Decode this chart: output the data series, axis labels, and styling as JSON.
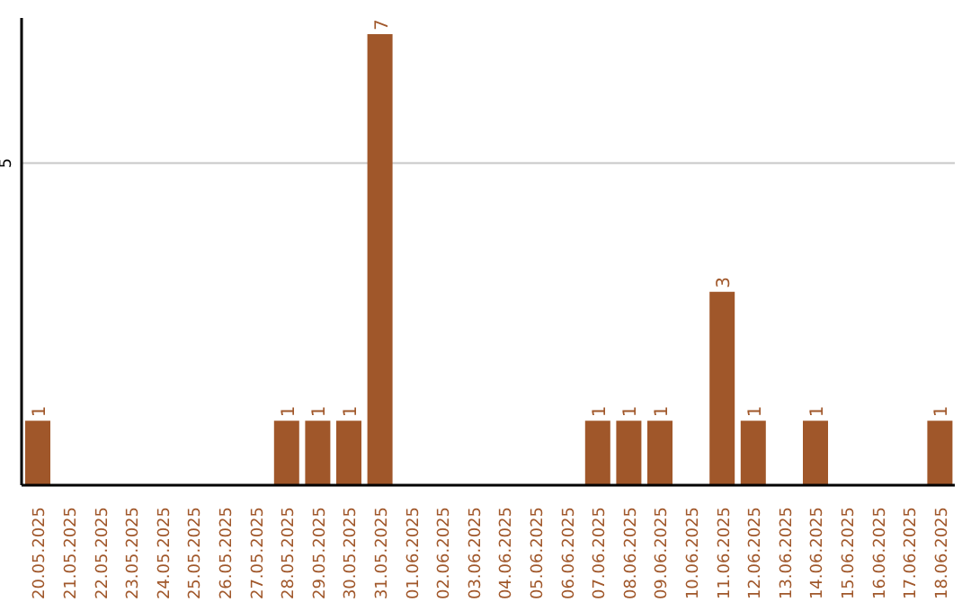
{
  "chart_data": {
    "type": "bar",
    "categories": [
      "20.05.2025",
      "21.05.2025",
      "22.05.2025",
      "23.05.2025",
      "24.05.2025",
      "25.05.2025",
      "26.05.2025",
      "27.05.2025",
      "28.05.2025",
      "29.05.2025",
      "30.05.2025",
      "31.05.2025",
      "01.06.2025",
      "02.06.2025",
      "03.06.2025",
      "04.06.2025",
      "05.06.2025",
      "06.06.2025",
      "07.06.2025",
      "08.06.2025",
      "09.06.2025",
      "10.06.2025",
      "11.06.2025",
      "12.06.2025",
      "13.06.2025",
      "14.06.2025",
      "15.06.2025",
      "16.06.2025",
      "17.06.2025",
      "18.06.2025"
    ],
    "values": [
      1,
      0,
      0,
      0,
      0,
      0,
      0,
      0,
      1,
      1,
      1,
      7,
      0,
      0,
      0,
      0,
      0,
      0,
      1,
      1,
      1,
      0,
      3,
      1,
      0,
      1,
      0,
      0,
      0,
      1
    ],
    "value_labels": [
      "1",
      null,
      null,
      null,
      null,
      null,
      null,
      null,
      "1",
      "1",
      "1",
      "7",
      null,
      null,
      null,
      null,
      null,
      null,
      "1",
      "1",
      "1",
      null,
      "3",
      "1",
      null,
      "1",
      null,
      null,
      null,
      "1"
    ],
    "color": "#a0572a",
    "ylim": [
      0,
      7.25
    ],
    "yticks": [
      5
    ],
    "grid": "y",
    "legend": false
  }
}
